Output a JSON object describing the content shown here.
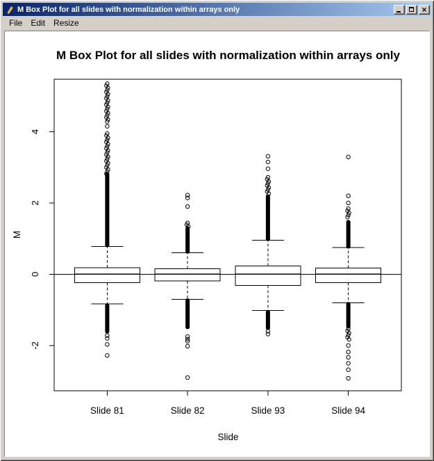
{
  "window": {
    "title": "M Box Plot for all slides with normalization within arrays only",
    "controls": {
      "close_glyph": "×"
    },
    "titlebar_gradient": [
      "#0a246a",
      "#a6caf0"
    ],
    "chrome_color": "#d4d0c8"
  },
  "menu": {
    "items": [
      "File",
      "Edit",
      "Resize"
    ]
  },
  "chart_data": {
    "type": "boxplot",
    "title": "M Box Plot for all slides with normalization within arrays only",
    "xlabel": "Slide",
    "ylabel": "M",
    "categories": [
      "Slide 81",
      "Slide 82",
      "Slide 93",
      "Slide 94"
    ],
    "yticks": [
      4,
      2,
      0,
      -2
    ],
    "ylim": [
      -3.27,
      5.47
    ],
    "reference_line": 0,
    "grid": false,
    "series": [
      {
        "name": "Slide 81",
        "q1": -0.24,
        "median": 0,
        "q3": 0.18,
        "whisker_low": -0.83,
        "whisker_high": 0.78,
        "outliers": {
          "dense": [
            [
              2.82,
              0.8
            ],
            [
              -0.86,
              -1.62
            ]
          ],
          "medium": [
            [
              5.35,
              4.28
            ],
            [
              3.95,
              2.82
            ]
          ],
          "points": [
            4.15,
            -1.72,
            -1.8,
            -1.97,
            -2.28
          ]
        }
      },
      {
        "name": "Slide 82",
        "q1": -0.19,
        "median": 0,
        "q3": 0.15,
        "whisker_low": -0.7,
        "whisker_high": 0.6,
        "outliers": {
          "dense": [
            [
              1.3,
              0.62
            ],
            [
              -0.72,
              -1.5
            ]
          ],
          "medium": [
            [
              1.44,
              1.34
            ]
          ],
          "points": [
            2.22,
            2.14,
            1.9,
            -1.75,
            -1.82,
            -1.88,
            -2.02,
            -2.9
          ]
        }
      },
      {
        "name": "Slide 93",
        "q1": -0.31,
        "median": 0,
        "q3": 0.23,
        "whisker_low": -1.02,
        "whisker_high": 0.95,
        "outliers": {
          "dense": [
            [
              2.2,
              0.97
            ],
            [
              -1.05,
              -1.52
            ]
          ],
          "medium": [
            [
              2.72,
              2.26
            ]
          ],
          "points": [
            3.31,
            3.15,
            2.96,
            -1.6,
            -1.68
          ]
        }
      },
      {
        "name": "Slide 94",
        "q1": -0.24,
        "median": 0,
        "q3": 0.17,
        "whisker_low": -0.8,
        "whisker_high": 0.75,
        "outliers": {
          "dense": [
            [
              1.48,
              0.76
            ],
            [
              -0.82,
              -1.48
            ]
          ],
          "medium": [
            [
              1.84,
              1.6
            ],
            [
              -1.53,
              -1.83
            ]
          ],
          "points": [
            3.29,
            2.2,
            2.0,
            -2.0,
            -2.18,
            -2.33,
            -2.5,
            -2.68,
            -2.92
          ]
        }
      }
    ]
  }
}
